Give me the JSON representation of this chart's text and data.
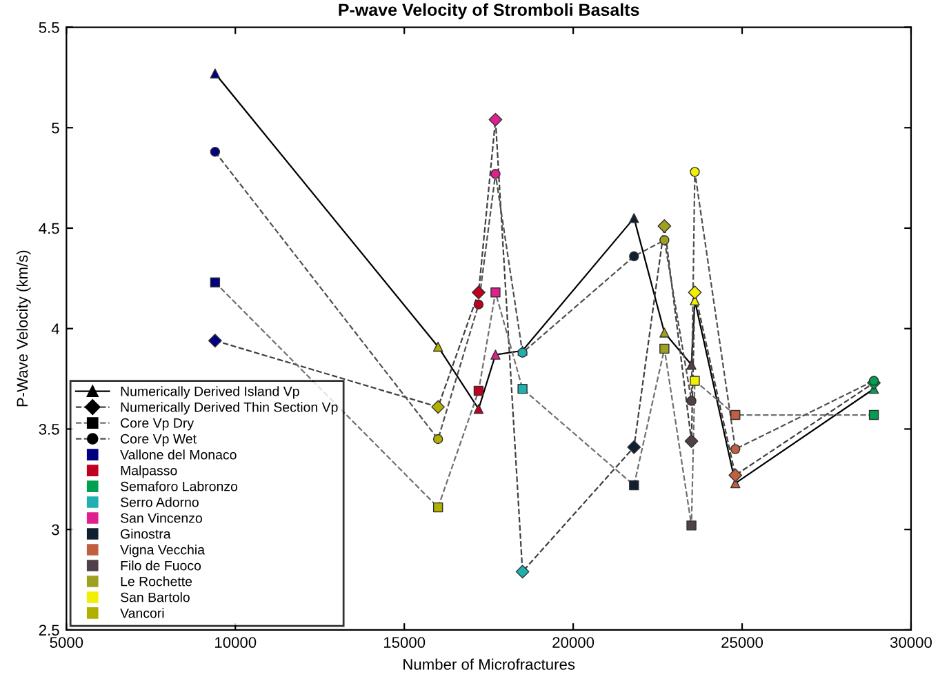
{
  "chart_data": {
    "type": "line",
    "title": "P-wave Velocity of Stromboli Basalts",
    "xlabel": "Number of Microfractures",
    "ylabel": "P-Wave Velocity (km/s)",
    "xlim": [
      5000,
      30000
    ],
    "xticks": [
      5000,
      10000,
      15000,
      20000,
      25000,
      30000
    ],
    "ylim": [
      2.5,
      5.5
    ],
    "yticks": [
      2.5,
      3,
      3.5,
      4,
      4.5,
      5,
      5.5
    ],
    "grid": false,
    "legend": "bottom left",
    "series": [
      {
        "name": "Numerically Derived Island Vp",
        "marker": "triangle",
        "line_style": "solid",
        "color": "#000000",
        "x": [
          9400,
          16000,
          17200,
          17700,
          18500,
          21800,
          22700,
          23500,
          23600,
          24800,
          28900
        ],
        "values": [
          5.27,
          3.91,
          3.6,
          3.87,
          3.89,
          4.55,
          3.98,
          3.82,
          4.14,
          3.23,
          3.7
        ],
        "colors": [
          "#000080",
          "#b0b000",
          "#c00020",
          "#e0208f",
          "#20b0b0",
          "#102030",
          "#a0a020",
          "#504048",
          "#f0f000",
          "#c06040",
          "#00a050"
        ]
      },
      {
        "name": "Numerically Derived Thin Section Vp",
        "marker": "diamond",
        "line_style": "dashed",
        "color": "#404040",
        "x": [
          9400,
          16000,
          17200,
          17700,
          18500,
          21800,
          22700,
          23500,
          23600,
          24800,
          28900
        ],
        "values": [
          3.94,
          3.61,
          4.18,
          5.04,
          2.79,
          3.41,
          4.51,
          3.44,
          4.18,
          3.27,
          3.73
        ],
        "colors": [
          "#000080",
          "#b0b000",
          "#c00020",
          "#e0208f",
          "#20b0b0",
          "#102030",
          "#a0a020",
          "#504048",
          "#f0f000",
          "#c06040",
          "#00a050"
        ]
      },
      {
        "name": "Core Vp Dry",
        "marker": "square",
        "line_style": "dashed",
        "color": "#707070",
        "x": [
          9400,
          16000,
          17200,
          17700,
          18500,
          21800,
          22700,
          23500,
          23600,
          24800,
          28900
        ],
        "values": [
          4.23,
          3.11,
          3.69,
          4.18,
          3.7,
          3.22,
          3.9,
          3.02,
          3.74,
          3.57,
          3.57
        ],
        "colors": [
          "#000080",
          "#b0b000",
          "#c00020",
          "#e0208f",
          "#20b0b0",
          "#102030",
          "#a0a020",
          "#504048",
          "#f0f000",
          "#c06040",
          "#00a050"
        ]
      },
      {
        "name": "Core Vp Wet",
        "marker": "circle",
        "line_style": "dashed",
        "color": "#505050",
        "x": [
          9400,
          16000,
          17200,
          17700,
          18500,
          21800,
          22700,
          23500,
          23600,
          24800,
          28900
        ],
        "values": [
          4.88,
          3.45,
          4.12,
          4.77,
          3.88,
          4.36,
          4.44,
          3.64,
          4.78,
          3.4,
          3.74
        ],
        "colors": [
          "#000080",
          "#b0b000",
          "#c00020",
          "#e0208f",
          "#20b0b0",
          "#102030",
          "#a0a020",
          "#504048",
          "#f0f000",
          "#c06040",
          "#00a050"
        ]
      },
      {
        "name": "Vallone del Monaco",
        "type": "scatter",
        "marker": "square",
        "color": "#000080"
      },
      {
        "name": "Malpasso",
        "type": "scatter",
        "marker": "square",
        "color": "#c00020"
      },
      {
        "name": "Semaforo Labronzo",
        "type": "scatter",
        "marker": "square",
        "color": "#00a050"
      },
      {
        "name": "Serro Adorno",
        "type": "scatter",
        "marker": "square",
        "color": "#20b0b0"
      },
      {
        "name": "San Vincenzo",
        "type": "scatter",
        "marker": "square",
        "color": "#e0208f"
      },
      {
        "name": "Ginostra",
        "type": "scatter",
        "marker": "square",
        "color": "#102030"
      },
      {
        "name": "Vigna Vecchia",
        "type": "scatter",
        "marker": "square",
        "color": "#c06040"
      },
      {
        "name": "Filo de Fuoco",
        "type": "scatter",
        "marker": "square",
        "color": "#504048"
      },
      {
        "name": "Le Rochette",
        "type": "scatter",
        "marker": "square",
        "color": "#a0a020"
      },
      {
        "name": "San Bartolo",
        "type": "scatter",
        "marker": "square",
        "color": "#f0f000"
      },
      {
        "name": "Vancori",
        "type": "scatter",
        "marker": "square",
        "color": "#b0b000"
      }
    ]
  }
}
